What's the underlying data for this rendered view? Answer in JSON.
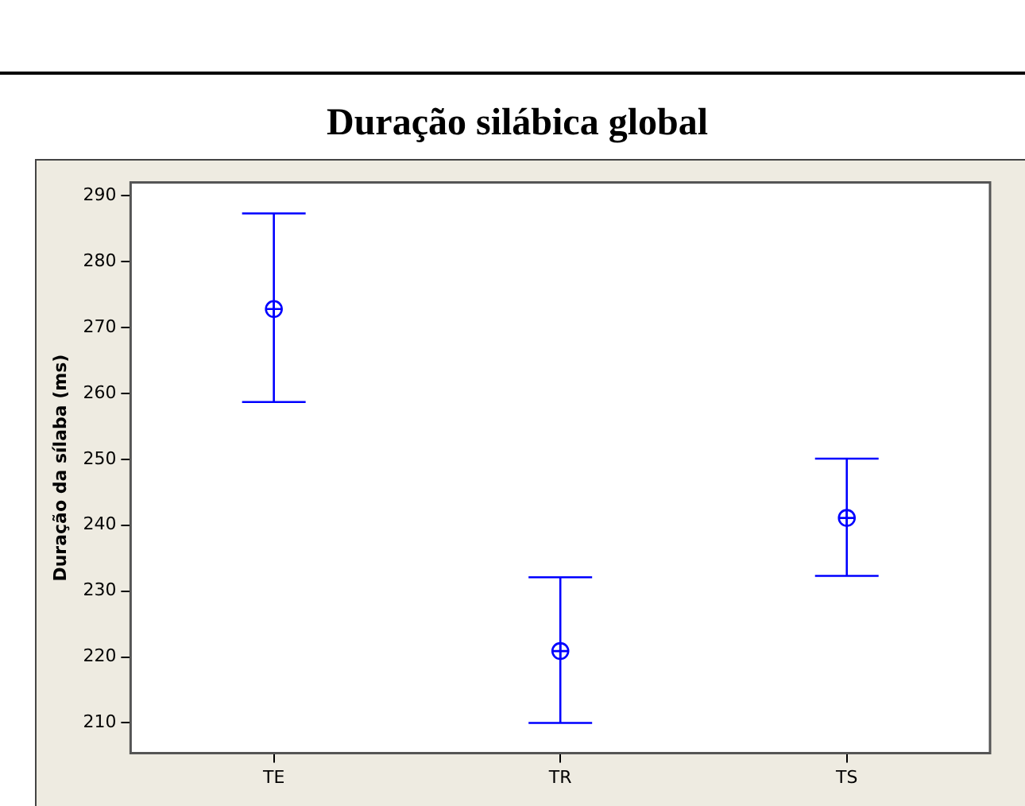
{
  "chart_data": {
    "type": "scatter",
    "title": "Duração silábica global",
    "ylabel": "Duração da sílaba (ms)",
    "categories": [
      "TE",
      "TR",
      "TS"
    ],
    "values": [
      272.8,
      220.9,
      241.1
    ],
    "errors": [
      [
        258.7,
        287.3
      ],
      [
        210,
        232.1
      ],
      [
        232.3,
        250.1
      ]
    ],
    "color": "#0000ff",
    "marker": "circle",
    "ylim": [
      205.4,
      292
    ],
    "yticks": [
      210,
      220,
      230,
      240,
      250,
      260,
      270,
      280,
      290
    ],
    "grid": false,
    "legend": false
  }
}
